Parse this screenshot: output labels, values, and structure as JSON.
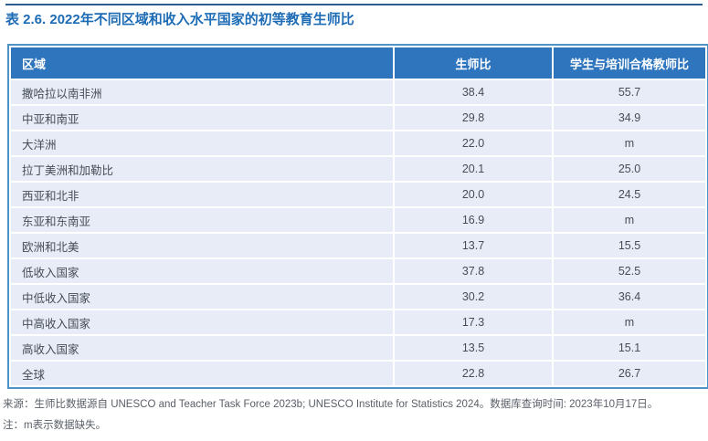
{
  "title": "表 2.6. 2022年不同区域和收入水平国家的初等教育生师比",
  "table": {
    "columns": [
      "区域",
      "生师比",
      "学生与培训合格教师比"
    ],
    "rows": [
      {
        "region": "撒哈拉以南非洲",
        "ptr": "38.4",
        "ptqtr": "55.7"
      },
      {
        "region": "中亚和南亚",
        "ptr": "29.8",
        "ptqtr": "34.9"
      },
      {
        "region": "大洋洲",
        "ptr": "22.0",
        "ptqtr": "m"
      },
      {
        "region": "拉丁美洲和加勒比",
        "ptr": "20.1",
        "ptqtr": "25.0"
      },
      {
        "region": "西亚和北非",
        "ptr": "20.0",
        "ptqtr": "24.5"
      },
      {
        "region": "东亚和东南亚",
        "ptr": "16.9",
        "ptqtr": "m"
      },
      {
        "region": "欧洲和北美",
        "ptr": "13.7",
        "ptqtr": "15.5"
      },
      {
        "region": "低收入国家",
        "ptr": "37.8",
        "ptqtr": "52.5"
      },
      {
        "region": "中低收入国家",
        "ptr": "30.2",
        "ptqtr": "36.4"
      },
      {
        "region": "中高收入国家",
        "ptr": "17.3",
        "ptqtr": "m"
      },
      {
        "region": "高收入国家",
        "ptr": "13.5",
        "ptqtr": "15.1"
      },
      {
        "region": "全球",
        "ptr": "22.8",
        "ptqtr": "26.7"
      }
    ]
  },
  "footnotes": {
    "source_label": "来源：",
    "source_text": "生师比数据源自 UNESCO and Teacher Task Force 2023b; UNESCO Institute for Statistics 2024。数据库查询时间: 2023年10月17日。",
    "note_label": "注：",
    "note_text": "m表示数据缺失。"
  },
  "colors": {
    "top_rule": "#2c5d90",
    "title": "#1e6cb5",
    "header_bg": "#2e75be",
    "header_text": "#ffffff",
    "row_bg": "#e7ecf6",
    "body_text": "#474d56",
    "table_border": "#4e92c6",
    "footnote_text": "#5a6068"
  }
}
